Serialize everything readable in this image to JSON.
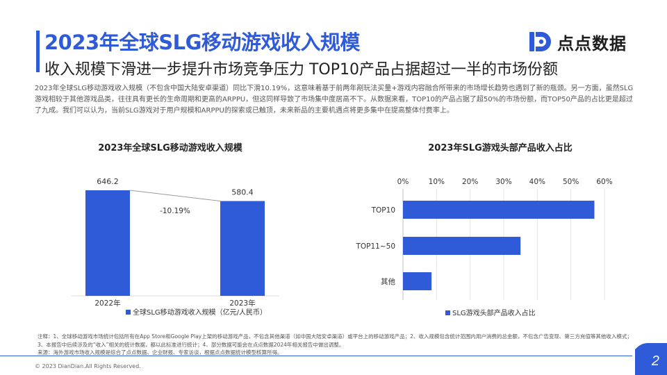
{
  "header": {
    "title": "2023年全球SLG移动游戏收入规模",
    "subtitle": "收入规模下滑进一步提升市场竞争压力 TOP10产品占据超过一半的市场份额"
  },
  "logo": {
    "text": "点点数据",
    "icon": "dd-logo-icon",
    "color": "#2f5bd8"
  },
  "intro": "2023年全球SLG移动游戏收入规模（不包含中国大陆安卓渠道）同比下滑10.19%，这意味着基于前两年剐玩法买量+游戏内容融合所带来的市场增长趋势也遇到了新的瓶颈。另一方面，虽然SLG游戏相较于其他游戏品类，往往具有更长的生命周期和更高的ARPPU，但这同样导致了市场集中度居高不下。从数据来看，TOP10的产品占据了超50%的市场份额，而TOP50产品的占比更是超过了九成。我们可以认为，当前SLG游戏对于用户规模和ARPPU的探索或已触顶，未来新品的主要机遇点将更多集中在提高整体付费率上。",
  "chart_data": [
    {
      "type": "bar",
      "title": "2023年全球SLG移动游戏收入规模",
      "categories": [
        "2022年",
        "2023年"
      ],
      "series": [
        {
          "name": "全球SLG移动游戏收入规模（亿元/人民币）",
          "values": [
            646.2,
            580.4
          ]
        }
      ],
      "data_labels": [
        "646.2",
        "580.4"
      ],
      "annotation": "-10.19%",
      "ylim": [
        0,
        700
      ],
      "grid": false,
      "legend": "bottom",
      "color": "#2f5bd8"
    },
    {
      "type": "bar",
      "orientation": "horizontal",
      "title": "2023年SLG游戏头部产品收入占比",
      "categories": [
        "TOP10",
        "TOP11~50",
        "其他"
      ],
      "series": [
        {
          "name": "SLG游戏头部产品收入占比",
          "values": [
            57,
            35,
            8.5
          ]
        }
      ],
      "x_ticks": [
        "0%",
        "10%",
        "20%",
        "30%",
        "40%",
        "50%",
        "60%"
      ],
      "xlim": [
        0,
        60
      ],
      "axis_position": "top",
      "grid": true,
      "legend": "bottom",
      "color": "#2f5bd8"
    }
  ],
  "notes": {
    "line1": "注释：1、全球移动游戏市场统计包括所有在App Store和Google Play上架的移动游戏产品，不包含其他渠道（如中国大陆安卓渠道）或平台上的移动游戏产品；2、收入规模包含统计范围内用户消费的总金额，不包含广告变现、第三方充值等其他收入模式；3、本报告中后续涉及的“收入”相关的统计数据，都以此标准进行统计；4、部分数据可能会在点点数据2024年相关报告中做出调整。",
    "line2": "来源：海外游戏市场收入规模是综合了点点数据、企业财报、专家访谈，根据点点数据统计模型核算所得。"
  },
  "footer": {
    "copyright": "© 2023 DianDian.All Rights Reserved.",
    "page_number": "2"
  }
}
